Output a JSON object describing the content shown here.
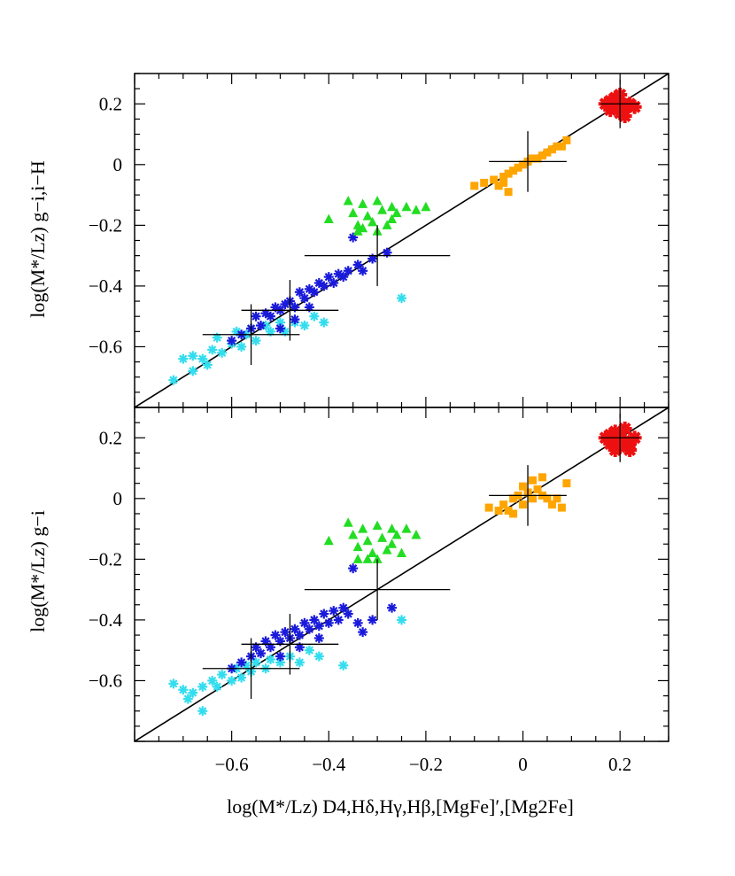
{
  "chart_data": [
    {
      "panel": "top",
      "type": "scatter",
      "ylabel": "log(M*/Lz) g−i,i−H",
      "xlim": [
        -0.8,
        0.3
      ],
      "ylim": [
        -0.8,
        0.3
      ],
      "yticks": [
        0.2,
        0,
        -0.2,
        -0.4,
        -0.6
      ],
      "ytick_labels": [
        "0.2",
        "0",
        "−0.2",
        "−0.4",
        "−0.6"
      ],
      "one_to_one_line": true,
      "series": [
        {
          "name": "cyan",
          "color": "#33ddee",
          "marker": "asterisk",
          "cluster": {
            "x_range": [
              -0.72,
              -0.55
            ],
            "y_at_x": [
              -0.68,
              -0.55
            ]
          },
          "points": [
            [
              -0.72,
              -0.71
            ],
            [
              -0.7,
              -0.64
            ],
            [
              -0.68,
              -0.63
            ],
            [
              -0.66,
              -0.64
            ],
            [
              -0.64,
              -0.61
            ],
            [
              -0.63,
              -0.57
            ],
            [
              -0.62,
              -0.62
            ],
            [
              -0.6,
              -0.59
            ],
            [
              -0.59,
              -0.55
            ],
            [
              -0.58,
              -0.6
            ],
            [
              -0.57,
              -0.56
            ],
            [
              -0.56,
              -0.54
            ],
            [
              -0.55,
              -0.58
            ],
            [
              -0.53,
              -0.53
            ],
            [
              -0.52,
              -0.55
            ],
            [
              -0.5,
              -0.52
            ],
            [
              -0.49,
              -0.55
            ],
            [
              -0.47,
              -0.52
            ],
            [
              -0.45,
              -0.53
            ],
            [
              -0.43,
              -0.5
            ],
            [
              -0.41,
              -0.52
            ],
            [
              -0.25,
              -0.44
            ],
            [
              -0.68,
              -0.68
            ],
            [
              -0.65,
              -0.66
            ]
          ]
        },
        {
          "name": "blue",
          "color": "#1a1adb",
          "marker": "asterisk",
          "cluster": {
            "x_range": [
              -0.6,
              -0.28
            ],
            "y_at_x": [
              -0.58,
              -0.29
            ]
          },
          "points": [
            [
              -0.6,
              -0.58
            ],
            [
              -0.58,
              -0.56
            ],
            [
              -0.56,
              -0.54
            ],
            [
              -0.55,
              -0.5
            ],
            [
              -0.54,
              -0.53
            ],
            [
              -0.53,
              -0.49
            ],
            [
              -0.52,
              -0.5
            ],
            [
              -0.51,
              -0.47
            ],
            [
              -0.5,
              -0.48
            ],
            [
              -0.49,
              -0.46
            ],
            [
              -0.48,
              -0.45
            ],
            [
              -0.47,
              -0.47
            ],
            [
              -0.46,
              -0.42
            ],
            [
              -0.45,
              -0.44
            ],
            [
              -0.44,
              -0.41
            ],
            [
              -0.43,
              -0.42
            ],
            [
              -0.42,
              -0.39
            ],
            [
              -0.41,
              -0.4
            ],
            [
              -0.4,
              -0.37
            ],
            [
              -0.39,
              -0.39
            ],
            [
              -0.38,
              -0.36
            ],
            [
              -0.37,
              -0.37
            ],
            [
              -0.36,
              -0.35
            ],
            [
              -0.34,
              -0.33
            ],
            [
              -0.33,
              -0.35
            ],
            [
              -0.31,
              -0.31
            ],
            [
              -0.35,
              -0.24
            ],
            [
              -0.28,
              -0.29
            ],
            [
              -0.5,
              -0.54
            ],
            [
              -0.47,
              -0.51
            ],
            [
              -0.44,
              -0.47
            ]
          ]
        },
        {
          "name": "green",
          "color": "#22dd22",
          "marker": "triangle",
          "points": [
            [
              -0.4,
              -0.18
            ],
            [
              -0.36,
              -0.12
            ],
            [
              -0.35,
              -0.16
            ],
            [
              -0.34,
              -0.2
            ],
            [
              -0.33,
              -0.13
            ],
            [
              -0.32,
              -0.17
            ],
            [
              -0.31,
              -0.19
            ],
            [
              -0.3,
              -0.12
            ],
            [
              -0.3,
              -0.22
            ],
            [
              -0.29,
              -0.15
            ],
            [
              -0.28,
              -0.2
            ],
            [
              -0.27,
              -0.14
            ],
            [
              -0.27,
              -0.18
            ],
            [
              -0.26,
              -0.16
            ],
            [
              -0.24,
              -0.14
            ],
            [
              -0.22,
              -0.15
            ],
            [
              -0.2,
              -0.14
            ],
            [
              -0.34,
              -0.22
            ],
            [
              -0.33,
              -0.21
            ]
          ]
        },
        {
          "name": "orange",
          "color": "#ffa500",
          "marker": "square",
          "points": [
            [
              -0.1,
              -0.07
            ],
            [
              -0.08,
              -0.06
            ],
            [
              -0.06,
              -0.05
            ],
            [
              -0.05,
              -0.07
            ],
            [
              -0.04,
              -0.04
            ],
            [
              -0.03,
              -0.03
            ],
            [
              -0.02,
              -0.02
            ],
            [
              -0.01,
              -0.01
            ],
            [
              0.0,
              0.0
            ],
            [
              0.01,
              0.01
            ],
            [
              0.02,
              0.02
            ],
            [
              0.03,
              0.02
            ],
            [
              0.04,
              0.03
            ],
            [
              0.05,
              0.04
            ],
            [
              0.06,
              0.05
            ],
            [
              0.07,
              0.06
            ],
            [
              0.08,
              0.06
            ],
            [
              0.09,
              0.08
            ],
            [
              -0.03,
              -0.09
            ],
            [
              -0.04,
              -0.06
            ]
          ]
        },
        {
          "name": "red",
          "color": "#ee1111",
          "marker": "asterisk",
          "points": [
            [
              0.17,
              0.2
            ],
            [
              0.18,
              0.18
            ],
            [
              0.19,
              0.19
            ],
            [
              0.19,
              0.22
            ],
            [
              0.2,
              0.2
            ],
            [
              0.2,
              0.17
            ],
            [
              0.21,
              0.19
            ],
            [
              0.22,
              0.2
            ],
            [
              0.23,
              0.19
            ],
            [
              0.18,
              0.21
            ],
            [
              0.2,
              0.23
            ],
            [
              0.21,
              0.16
            ]
          ]
        }
      ],
      "error_crosses": [
        {
          "x": -0.56,
          "y": -0.56,
          "xerr": 0.1,
          "yerr": 0.1
        },
        {
          "x": -0.48,
          "y": -0.48,
          "xerr": 0.1,
          "yerr": 0.1
        },
        {
          "x": -0.3,
          "y": -0.3,
          "xerr": 0.15,
          "yerr": 0.1
        },
        {
          "x": 0.01,
          "y": 0.01,
          "xerr": 0.08,
          "yerr": 0.1
        },
        {
          "x": 0.2,
          "y": 0.2,
          "xerr": 0.04,
          "yerr": 0.08
        }
      ]
    },
    {
      "panel": "bottom",
      "type": "scatter",
      "ylabel": "log(M*/Lz) g−i",
      "xlabel": "log(M*/Lz) D4,Hδ,Hγ,Hβ,[MgFe]′,[Mg2Fe]",
      "xlim": [
        -0.8,
        0.3
      ],
      "ylim": [
        -0.8,
        0.3
      ],
      "xticks": [
        -0.6,
        -0.4,
        -0.2,
        0,
        0.2
      ],
      "xtick_labels": [
        "−0.6",
        "−0.4",
        "−0.2",
        "0",
        "0.2"
      ],
      "yticks": [
        0.2,
        0,
        -0.2,
        -0.4,
        -0.6
      ],
      "ytick_labels": [
        "0.2",
        "0",
        "−0.2",
        "−0.4",
        "−0.6"
      ],
      "one_to_one_line": true,
      "series": [
        {
          "name": "cyan",
          "color": "#33ddee",
          "marker": "asterisk",
          "points": [
            [
              -0.72,
              -0.61
            ],
            [
              -0.7,
              -0.63
            ],
            [
              -0.68,
              -0.64
            ],
            [
              -0.66,
              -0.62
            ],
            [
              -0.64,
              -0.6
            ],
            [
              -0.63,
              -0.62
            ],
            [
              -0.62,
              -0.58
            ],
            [
              -0.6,
              -0.6
            ],
            [
              -0.59,
              -0.56
            ],
            [
              -0.58,
              -0.59
            ],
            [
              -0.57,
              -0.55
            ],
            [
              -0.56,
              -0.57
            ],
            [
              -0.55,
              -0.54
            ],
            [
              -0.53,
              -0.56
            ],
            [
              -0.52,
              -0.53
            ],
            [
              -0.5,
              -0.54
            ],
            [
              -0.48,
              -0.52
            ],
            [
              -0.46,
              -0.54
            ],
            [
              -0.44,
              -0.5
            ],
            [
              -0.42,
              -0.52
            ],
            [
              -0.37,
              -0.55
            ],
            [
              -0.25,
              -0.4
            ],
            [
              -0.66,
              -0.7
            ],
            [
              -0.69,
              -0.66
            ]
          ]
        },
        {
          "name": "blue",
          "color": "#1a1adb",
          "marker": "asterisk",
          "points": [
            [
              -0.6,
              -0.56
            ],
            [
              -0.58,
              -0.54
            ],
            [
              -0.56,
              -0.52
            ],
            [
              -0.55,
              -0.49
            ],
            [
              -0.54,
              -0.51
            ],
            [
              -0.53,
              -0.47
            ],
            [
              -0.52,
              -0.49
            ],
            [
              -0.51,
              -0.45
            ],
            [
              -0.5,
              -0.47
            ],
            [
              -0.49,
              -0.44
            ],
            [
              -0.48,
              -0.46
            ],
            [
              -0.47,
              -0.43
            ],
            [
              -0.46,
              -0.45
            ],
            [
              -0.45,
              -0.41
            ],
            [
              -0.44,
              -0.43
            ],
            [
              -0.43,
              -0.4
            ],
            [
              -0.42,
              -0.42
            ],
            [
              -0.41,
              -0.38
            ],
            [
              -0.4,
              -0.41
            ],
            [
              -0.39,
              -0.37
            ],
            [
              -0.38,
              -0.4
            ],
            [
              -0.37,
              -0.36
            ],
            [
              -0.36,
              -0.38
            ],
            [
              -0.34,
              -0.41
            ],
            [
              -0.33,
              -0.44
            ],
            [
              -0.31,
              -0.4
            ],
            [
              -0.35,
              -0.23
            ],
            [
              -0.27,
              -0.36
            ],
            [
              -0.5,
              -0.52
            ],
            [
              -0.46,
              -0.49
            ],
            [
              -0.42,
              -0.46
            ]
          ]
        },
        {
          "name": "green",
          "color": "#22dd22",
          "marker": "triangle",
          "points": [
            [
              -0.4,
              -0.14
            ],
            [
              -0.36,
              -0.08
            ],
            [
              -0.35,
              -0.12
            ],
            [
              -0.34,
              -0.2
            ],
            [
              -0.33,
              -0.1
            ],
            [
              -0.32,
              -0.14
            ],
            [
              -0.31,
              -0.18
            ],
            [
              -0.3,
              -0.09
            ],
            [
              -0.3,
              -0.2
            ],
            [
              -0.29,
              -0.13
            ],
            [
              -0.28,
              -0.17
            ],
            [
              -0.27,
              -0.1
            ],
            [
              -0.27,
              -0.15
            ],
            [
              -0.26,
              -0.12
            ],
            [
              -0.25,
              -0.18
            ],
            [
              -0.24,
              -0.1
            ],
            [
              -0.22,
              -0.12
            ],
            [
              -0.34,
              -0.16
            ],
            [
              -0.32,
              -0.2
            ]
          ]
        },
        {
          "name": "orange",
          "color": "#ffa500",
          "marker": "square",
          "points": [
            [
              -0.07,
              -0.03
            ],
            [
              -0.05,
              -0.04
            ],
            [
              -0.04,
              -0.02
            ],
            [
              -0.03,
              -0.04
            ],
            [
              -0.02,
              0.0
            ],
            [
              -0.01,
              0.01
            ],
            [
              0.0,
              -0.02
            ],
            [
              0.01,
              0.02
            ],
            [
              0.02,
              0.0
            ],
            [
              0.03,
              0.03
            ],
            [
              0.04,
              0.01
            ],
            [
              0.05,
              0.0
            ],
            [
              0.06,
              -0.02
            ],
            [
              0.07,
              0.0
            ],
            [
              0.08,
              -0.03
            ],
            [
              0.09,
              0.05
            ],
            [
              0.0,
              0.04
            ],
            [
              0.02,
              0.06
            ],
            [
              0.04,
              0.07
            ],
            [
              -0.02,
              -0.05
            ]
          ]
        },
        {
          "name": "red",
          "color": "#ee1111",
          "marker": "asterisk",
          "points": [
            [
              0.17,
              0.2
            ],
            [
              0.18,
              0.18
            ],
            [
              0.19,
              0.22
            ],
            [
              0.2,
              0.2
            ],
            [
              0.2,
              0.17
            ],
            [
              0.21,
              0.19
            ],
            [
              0.22,
              0.18
            ],
            [
              0.23,
              0.2
            ],
            [
              0.18,
              0.21
            ],
            [
              0.19,
              0.16
            ],
            [
              0.21,
              0.23
            ],
            [
              0.22,
              0.16
            ]
          ]
        }
      ],
      "error_crosses": [
        {
          "x": -0.56,
          "y": -0.56,
          "xerr": 0.1,
          "yerr": 0.1
        },
        {
          "x": -0.48,
          "y": -0.48,
          "xerr": 0.1,
          "yerr": 0.1
        },
        {
          "x": -0.3,
          "y": -0.3,
          "xerr": 0.15,
          "yerr": 0.1
        },
        {
          "x": 0.01,
          "y": 0.01,
          "xerr": 0.08,
          "yerr": 0.1
        },
        {
          "x": 0.2,
          "y": 0.2,
          "xerr": 0.04,
          "yerr": 0.08
        }
      ]
    }
  ]
}
